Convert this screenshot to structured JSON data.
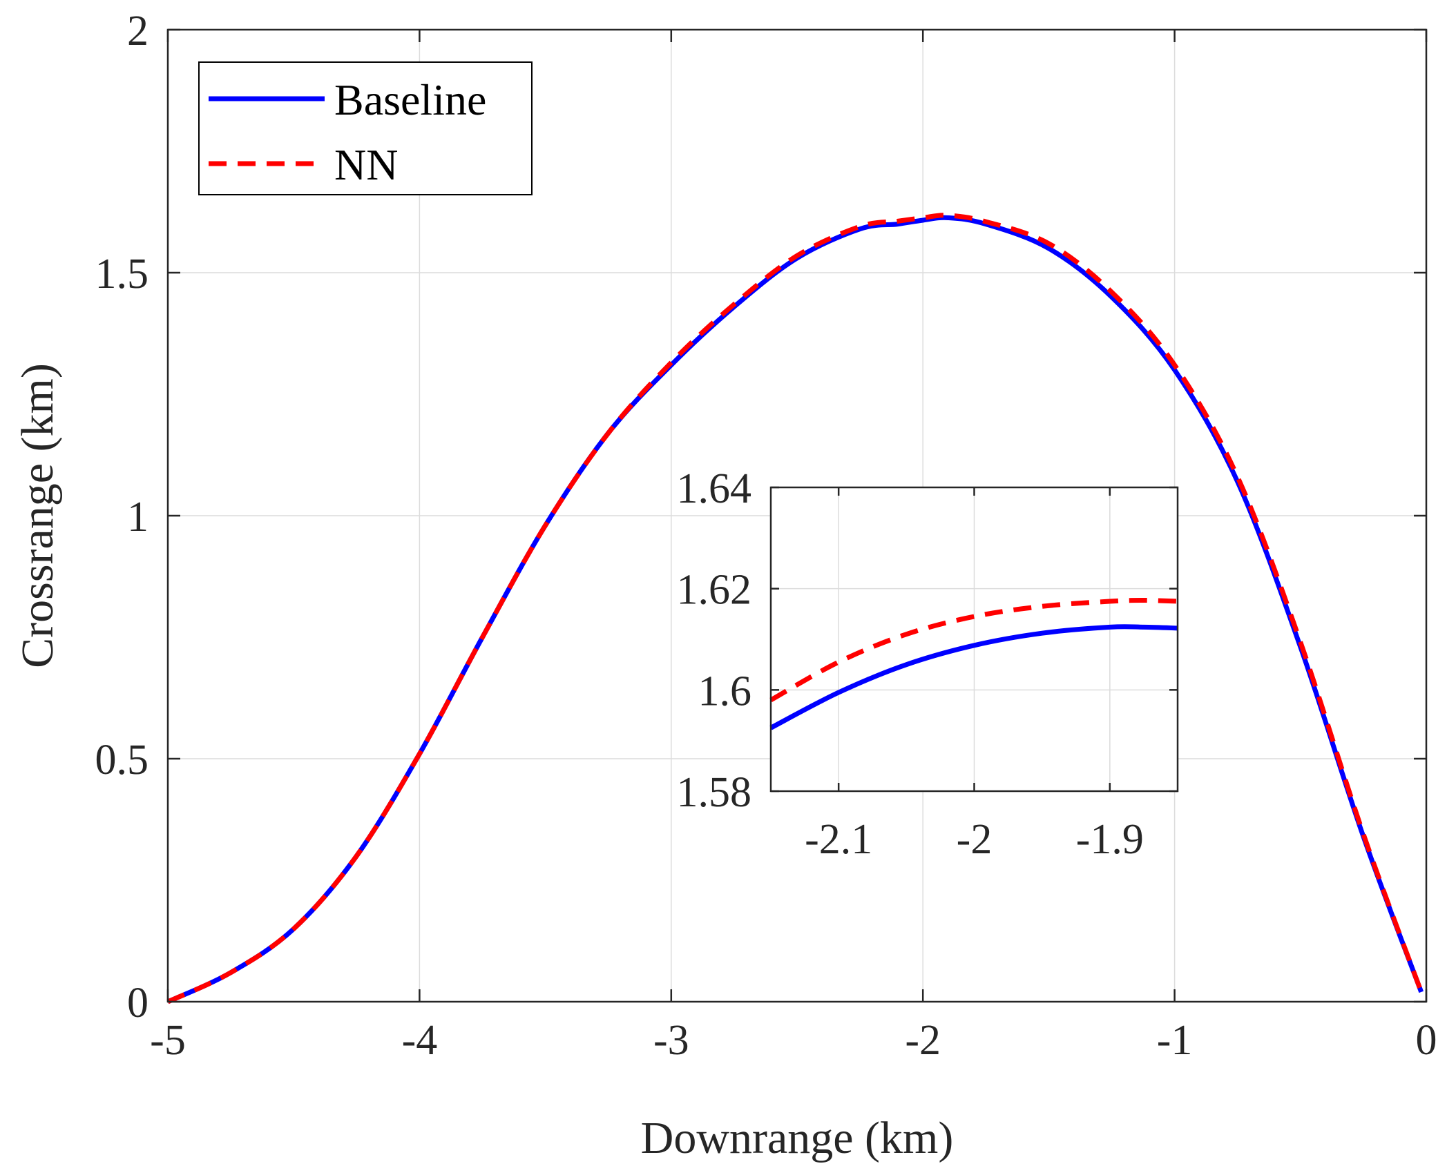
{
  "chart_data": [
    {
      "type": "line",
      "title": "",
      "xlabel": "Downrange (km)",
      "ylabel": "Crossrange (km)",
      "xlim": [
        -5,
        0
      ],
      "ylim": [
        0,
        2
      ],
      "grid": true,
      "xticks": [
        -5,
        -4,
        -3,
        -2,
        -1,
        0
      ],
      "xtick_labels": [
        "-5",
        "-4",
        "-3",
        "-2",
        "-1",
        "0"
      ],
      "yticks": [
        0,
        0.5,
        1,
        1.5,
        2
      ],
      "ytick_labels": [
        "0",
        "0.5",
        "1",
        "1.5",
        "2"
      ],
      "legend": {
        "position": "top-left",
        "entries": [
          "Baseline",
          "NN"
        ]
      },
      "series": [
        {
          "name": "Baseline",
          "color": "#0000ff",
          "style": "solid",
          "x": [
            -5.0,
            -4.75,
            -4.5,
            -4.25,
            -4.0,
            -3.75,
            -3.5,
            -3.25,
            -3.0,
            -2.75,
            -2.5,
            -2.25,
            -2.1,
            -2.0,
            -1.9,
            -1.75,
            -1.5,
            -1.25,
            -1.0,
            -0.75,
            -0.5,
            -0.25,
            -0.02
          ],
          "y": [
            0.0,
            0.06,
            0.15,
            0.3,
            0.51,
            0.75,
            0.98,
            1.17,
            1.31,
            1.43,
            1.53,
            1.59,
            1.6,
            1.608,
            1.613,
            1.6,
            1.55,
            1.45,
            1.3,
            1.07,
            0.73,
            0.34,
            0.02
          ]
        },
        {
          "name": "NN",
          "color": "#ff0000",
          "style": "dashed",
          "x": [
            -5.0,
            -4.75,
            -4.5,
            -4.25,
            -4.0,
            -3.75,
            -3.5,
            -3.25,
            -3.0,
            -2.75,
            -2.5,
            -2.25,
            -2.1,
            -2.0,
            -1.9,
            -1.75,
            -1.5,
            -1.25,
            -1.0,
            -0.75,
            -0.5,
            -0.25,
            -0.02
          ],
          "y": [
            0.0,
            0.06,
            0.15,
            0.3,
            0.51,
            0.75,
            0.98,
            1.17,
            1.315,
            1.435,
            1.535,
            1.595,
            1.606,
            1.613,
            1.618,
            1.605,
            1.56,
            1.46,
            1.31,
            1.08,
            0.74,
            0.345,
            0.02
          ]
        }
      ]
    },
    {
      "type": "line",
      "title": "",
      "role": "inset (zoom of peak region)",
      "xlabel": "",
      "ylabel": "",
      "xlim": [
        -2.15,
        -1.85
      ],
      "ylim": [
        1.58,
        1.64
      ],
      "grid": true,
      "xticks": [
        -2.1,
        -2,
        -1.9
      ],
      "xtick_labels": [
        "-2.1",
        "-2",
        "-1.9"
      ],
      "yticks": [
        1.58,
        1.6,
        1.62,
        1.64
      ],
      "ytick_labels": [
        "1.58",
        "1.6",
        "1.62",
        "1.64"
      ],
      "series": [
        {
          "name": "Baseline",
          "color": "#0000ff",
          "style": "solid",
          "x": [
            -2.15,
            -2.1,
            -2.05,
            -2.0,
            -1.95,
            -1.9,
            -1.875,
            -1.85
          ],
          "y": [
            1.5925,
            1.5995,
            1.605,
            1.6088,
            1.6112,
            1.6124,
            1.6124,
            1.6122
          ]
        },
        {
          "name": "NN",
          "color": "#ff0000",
          "style": "dashed",
          "x": [
            -2.15,
            -2.1,
            -2.05,
            -2.0,
            -1.95,
            -1.9,
            -1.875,
            -1.85
          ],
          "y": [
            1.598,
            1.6055,
            1.611,
            1.6145,
            1.6165,
            1.6175,
            1.6177,
            1.6175
          ]
        }
      ]
    }
  ]
}
